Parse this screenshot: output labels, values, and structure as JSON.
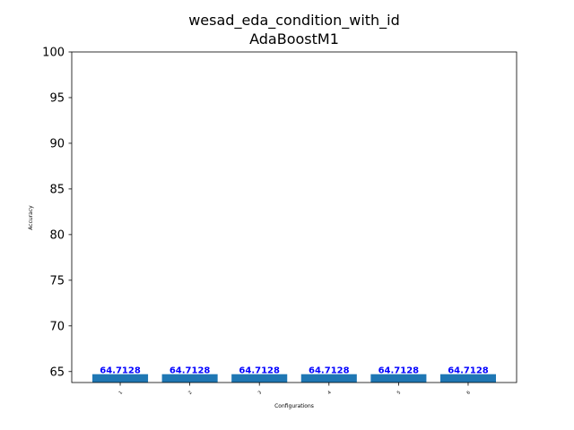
{
  "chart_data": {
    "type": "bar",
    "title": "wesad_eda_condition_with_id",
    "subtitle": "AdaBoostM1",
    "xlabel": "Configurations",
    "ylabel": "Accuracy",
    "categories": [
      "1",
      "2",
      "3",
      "4",
      "5",
      "6"
    ],
    "values": [
      64.7128,
      64.7128,
      64.7128,
      64.7128,
      64.7128,
      64.7128
    ],
    "data_labels": [
      "64.7128",
      "64.7128",
      "64.7128",
      "64.7128",
      "64.7128",
      "64.7128"
    ],
    "ylim": [
      63.8,
      100
    ],
    "yticks": [
      65,
      70,
      75,
      80,
      85,
      90,
      95,
      100
    ],
    "bar_color": "#1f77b4",
    "label_color": "#0000ff",
    "grid": false,
    "legend": "none"
  }
}
